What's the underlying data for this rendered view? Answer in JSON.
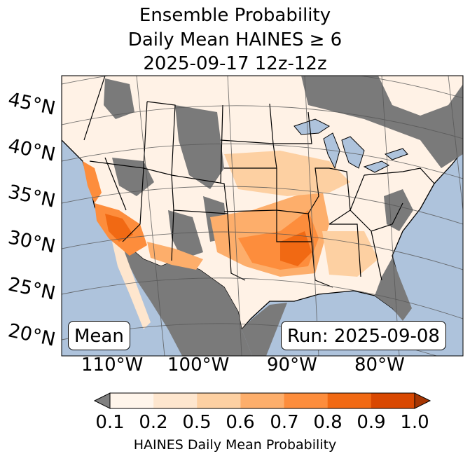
{
  "title": {
    "line1": "Ensemble Probability",
    "line2": "Daily Mean HAINES ≥ 6",
    "line3": "2025-09-17 12z-12z"
  },
  "map": {
    "lat_labels": [
      "45°N",
      "40°N",
      "35°N",
      "30°N",
      "25°N",
      "20°N"
    ],
    "lon_labels": [
      "110°W",
      "100°W",
      "90°W",
      "80°W"
    ],
    "stat_label": "Mean",
    "run_label": "Run: 2025-09-08",
    "colors": {
      "ocean": "#aec3dc",
      "missing": "#7a7a7a",
      "low": "#fff2e6",
      "border": "#000000"
    }
  },
  "colorbar": {
    "ticks": [
      "0.1",
      "0.2",
      "0.5",
      "0.6",
      "0.7",
      "0.8",
      "0.9",
      "1.0"
    ],
    "colors": [
      "#fff5eb",
      "#fee6ce",
      "#fdd0a2",
      "#fdae6b",
      "#fd8d3c",
      "#f16913",
      "#d94801",
      "#a63603"
    ],
    "under_color": "#808080",
    "label": "HAINES Daily Mean Probability"
  }
}
